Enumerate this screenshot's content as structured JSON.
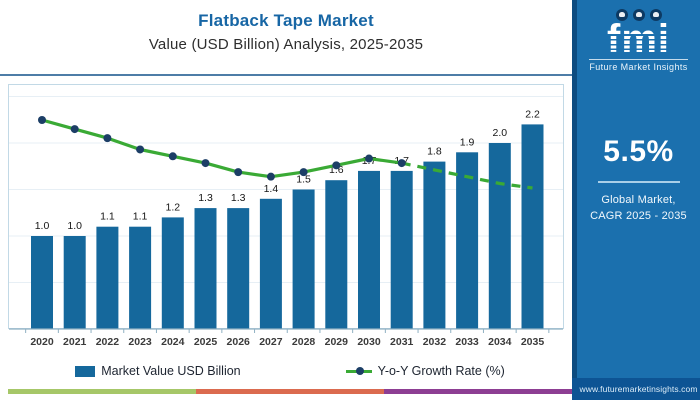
{
  "header": {
    "title": "Flatback Tape Market",
    "subtitle": "Value (USD Billion) Analysis, 2025-2035"
  },
  "legend": {
    "bars": "Market Value USD Billion",
    "line": "Y-o-Y Growth Rate (%)"
  },
  "sidebar": {
    "logo": {
      "text": "fmi",
      "tagline": "Future Market Insights"
    },
    "stat_value": "5.5%",
    "stat_label_line1": "Global Market,",
    "stat_label_line2": "CAGR 2025 - 2035",
    "website": "www.futuremarketinsights.com"
  },
  "colors": {
    "title": "#1766a5",
    "bar": "#15689c",
    "line": "#3aaa35",
    "marker": "#1c3e66",
    "axis": "#8fb0c2",
    "grid": "#e7eff5",
    "panel_border": "#c2d9e6",
    "sidebar": "#1b70ae",
    "sidebar_footer": "#0d5494",
    "accent_strip": [
      "#a6c768",
      "#db6b4f",
      "#8d3e93"
    ]
  },
  "chart_data": {
    "type": "bar",
    "combo": true,
    "title": "Flatback Tape Market",
    "subtitle": "Value (USD Billion) Analysis, 2025-2035",
    "categories": [
      "2020",
      "2021",
      "2022",
      "2023",
      "2024",
      "2025",
      "2026",
      "2027",
      "2028",
      "2029",
      "2030",
      "2031",
      "2032",
      "2033",
      "2034",
      "2035"
    ],
    "series": [
      {
        "name": "Market Value USD Billion",
        "chart_type": "bar",
        "values": [
          1.0,
          1.0,
          1.1,
          1.1,
          1.2,
          1.3,
          1.3,
          1.4,
          1.5,
          1.6,
          1.7,
          1.7,
          1.8,
          1.9,
          2.0,
          2.2
        ],
        "data_labels": true
      },
      {
        "name": "Y-o-Y Growth Rate (%)",
        "chart_type": "line",
        "values_estimated": true,
        "values": [
          7.0,
          6.6,
          6.2,
          5.7,
          5.4,
          5.1,
          4.7,
          4.5,
          4.7,
          5.0,
          5.3,
          5.1,
          4.8,
          4.5,
          4.2,
          4.0
        ],
        "solid_until_index": 11
      }
    ],
    "xlabel": "",
    "ylabel": "",
    "ylim": [
      0,
      2.5
    ],
    "grid": "faint-horizontal",
    "legend_position": "bottom"
  }
}
